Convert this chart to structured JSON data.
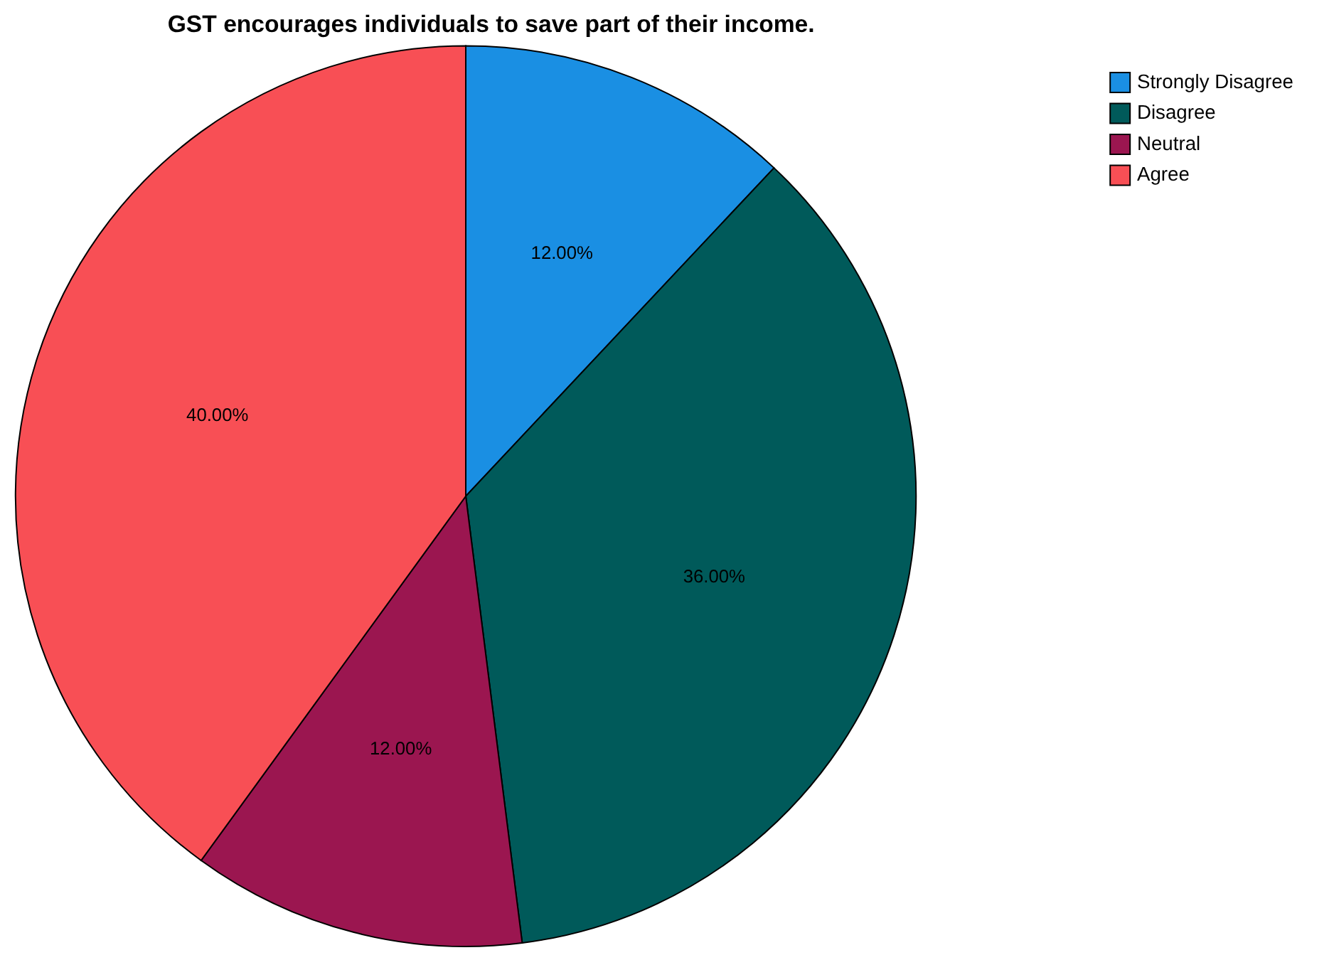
{
  "chart_data": {
    "type": "pie",
    "title": "GST encourages individuals to save part of their income.",
    "categories": [
      "Strongly Disagree",
      "Disagree",
      "Neutral",
      "Agree"
    ],
    "values": [
      12,
      36,
      12,
      40
    ],
    "colors": [
      "#1a8fe3",
      "#005a5a",
      "#9b1650",
      "#f84f55"
    ],
    "value_labels": [
      "12.00%",
      "36.00%",
      "12.00%",
      "40.00%"
    ],
    "legend": "top right"
  }
}
